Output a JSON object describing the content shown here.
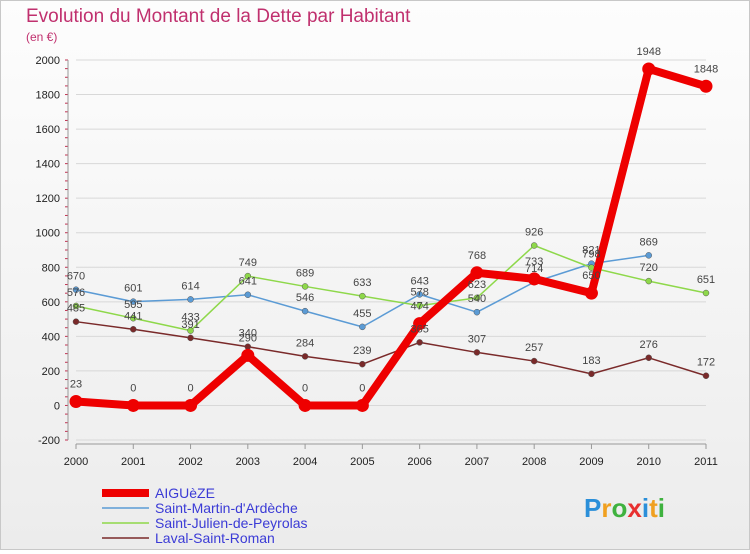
{
  "chart_data": {
    "type": "line",
    "title": "Evolution du Montant de la Dette par Habitant",
    "subtitle": "(en €)",
    "x": [
      "2000",
      "2001",
      "2002",
      "2003",
      "2004",
      "2005",
      "2006",
      "2007",
      "2008",
      "2009",
      "2010",
      "2011"
    ],
    "ylim": [
      -200,
      2000
    ],
    "yticks": [
      -200,
      0,
      200,
      400,
      600,
      800,
      1000,
      1200,
      1400,
      1600,
      1800,
      2000
    ],
    "series": [
      {
        "name": "AIGUèZE",
        "color": "#ee0000",
        "values": [
          23,
          0,
          0,
          290,
          0,
          0,
          474,
          768,
          733,
          650,
          1948,
          1848
        ]
      },
      {
        "name": "Saint-Martin-d'Ardèche",
        "color": "#5b9bd5",
        "values": [
          670,
          601,
          614,
          641,
          546,
          455,
          643,
          540,
          714,
          821,
          869,
          null
        ]
      },
      {
        "name": "Saint-Julien-de-Peyrolas",
        "color": "#8ed84a",
        "values": [
          576,
          505,
          433,
          749,
          689,
          633,
          578,
          623,
          926,
          798,
          720,
          651
        ]
      },
      {
        "name": "Laval-Saint-Roman",
        "color": "#7a2a2a",
        "values": [
          485,
          441,
          391,
          340,
          284,
          239,
          365,
          307,
          257,
          183,
          276,
          172
        ]
      }
    ],
    "grid": true,
    "legend": "bottom-left"
  },
  "brand": {
    "text": "Proxiti",
    "colors": [
      "#2b8fd9",
      "#f0a020",
      "#3fb23f",
      "#e83030",
      "#2b8fd9",
      "#f0a020",
      "#3fb23f"
    ]
  }
}
